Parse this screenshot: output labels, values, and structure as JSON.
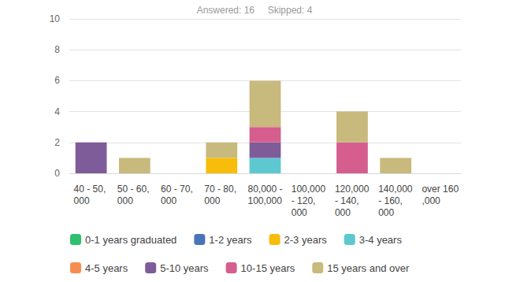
{
  "chart_data": {
    "type": "bar",
    "title": "Answered: 16     Skipped: 4",
    "stacked": true,
    "grid": true,
    "legend": "bottom",
    "categories": [
      "40 - 50,000",
      "50 - 60,000",
      "60 - 70,000",
      "70 - 80,000",
      "80,000 - 100,000",
      "100,000 - 120,000",
      "120,000 - 140,000",
      "140,000 - 160,000",
      "over 160,000"
    ],
    "series": [
      {
        "name": "0-1 years graduated",
        "color": "#2ec06f",
        "values": [
          0,
          0,
          0,
          0,
          0,
          0,
          0,
          0,
          0
        ]
      },
      {
        "name": "1-2 years",
        "color": "#4a74b8",
        "values": [
          0,
          0,
          0,
          0,
          0,
          0,
          0,
          0,
          0
        ]
      },
      {
        "name": "2-3 years",
        "color": "#f7bd0a",
        "values": [
          0,
          0,
          0,
          1,
          0,
          0,
          0,
          0,
          0
        ]
      },
      {
        "name": "3-4 years",
        "color": "#5ec8d0",
        "values": [
          0,
          0,
          0,
          0,
          1,
          0,
          0,
          0,
          0
        ]
      },
      {
        "name": "4-5 years",
        "color": "#f68d4f",
        "values": [
          0,
          0,
          0,
          0,
          0,
          0,
          0,
          0,
          0
        ]
      },
      {
        "name": "5-10 years",
        "color": "#7e5c99",
        "values": [
          2,
          0,
          0,
          0,
          1,
          0,
          0,
          0,
          0
        ]
      },
      {
        "name": "10-15 years",
        "color": "#d65e8e",
        "values": [
          0,
          0,
          0,
          0,
          1,
          0,
          2,
          0,
          0
        ]
      },
      {
        "name": "15 years and over",
        "color": "#c8b97d",
        "values": [
          0,
          1,
          0,
          1,
          3,
          0,
          2,
          1,
          0
        ]
      }
    ],
    "ylim": [
      0,
      10
    ],
    "yticks": [
      0,
      2,
      4,
      6,
      8,
      10
    ]
  }
}
